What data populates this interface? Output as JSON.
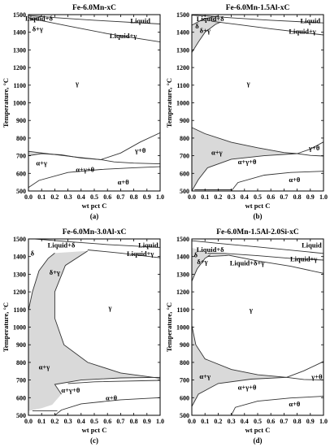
{
  "chart_data": [
    {
      "type": "line",
      "panel_label": "(a)",
      "title": "Fe-6.0Mn-xC",
      "xlabel": "wt pct C",
      "ylabel": "Temperature, °C",
      "xlim": [
        0,
        1.0
      ],
      "ylim": [
        500,
        1500
      ],
      "xticks": [
        "0.0",
        "0.1",
        "0.2",
        "0.3",
        "0.4",
        "0.5",
        "0.6",
        "0.7",
        "0.8",
        "0.9",
        "1.0"
      ],
      "yticks": [
        "500",
        "600",
        "700",
        "800",
        "900",
        "1000",
        "1100",
        "1200",
        "1300",
        "1400",
        "1500"
      ],
      "phase_regions": [
        {
          "label": "Liquid+δ",
          "x": 0.08,
          "y": 1480
        },
        {
          "label": "δ+γ",
          "x": 0.07,
          "y": 1420
        },
        {
          "label": "Liquid",
          "x": 0.85,
          "y": 1465
        },
        {
          "label": "Liquid+γ",
          "x": 0.72,
          "y": 1380
        },
        {
          "label": "γ",
          "x": 0.37,
          "y": 1110
        },
        {
          "label": "γ+θ",
          "x": 0.85,
          "y": 730
        },
        {
          "label": "α+γ",
          "x": 0.1,
          "y": 660
        },
        {
          "label": "α+γ+θ",
          "x": 0.43,
          "y": 623
        },
        {
          "label": "α+θ",
          "x": 0.72,
          "y": 550
        }
      ],
      "boundaries": [
        {
          "name": "liquidus",
          "points": [
            [
              0,
              1495
            ],
            [
              0.05,
              1492
            ],
            [
              0.2,
              1483
            ],
            [
              0.5,
              1468
            ],
            [
              1.0,
              1447
            ]
          ]
        },
        {
          "name": "gamma-liquid+gamma",
          "points": [
            [
              0.02,
              1478
            ],
            [
              0.3,
              1436
            ],
            [
              0.6,
              1392
            ],
            [
              1.0,
              1345
            ]
          ]
        },
        {
          "name": "delta-loop",
          "points": [
            [
              0,
              1490
            ],
            [
              0.01,
              1478
            ],
            [
              0.03,
              1470
            ],
            [
              0.07,
              1482
            ],
            [
              0.1,
              1492
            ]
          ]
        },
        {
          "name": "A3",
          "points": [
            [
              0,
              725
            ],
            [
              0.15,
              711
            ],
            [
              0.35,
              693
            ],
            [
              0.55,
              678
            ]
          ]
        },
        {
          "name": "acm",
          "points": [
            [
              0.55,
              678
            ],
            [
              0.7,
              715
            ],
            [
              0.85,
              778
            ],
            [
              1.0,
              830
            ]
          ]
        },
        {
          "name": "A1-upper",
          "points": [
            [
              0,
              700
            ],
            [
              0.1,
              712
            ],
            [
              0.25,
              705
            ],
            [
              0.4,
              687
            ],
            [
              0.55,
              678
            ]
          ]
        },
        {
          "name": "A1-lower",
          "points": [
            [
              0.55,
              678
            ],
            [
              0.65,
              665
            ],
            [
              0.8,
              658
            ],
            [
              1.0,
              654
            ]
          ]
        },
        {
          "name": "alpha-solvus",
          "points": [
            [
              0,
              520
            ],
            [
              0.08,
              560
            ],
            [
              0.3,
              605
            ],
            [
              0.55,
              622
            ],
            [
              0.8,
              632
            ],
            [
              1.0,
              638
            ]
          ]
        }
      ]
    },
    {
      "type": "line",
      "panel_label": "(b)",
      "title": "Fe-6.0Mn-1.5Al-xC",
      "xlabel": "wt pct C",
      "ylabel": "Temperature, °C",
      "xlim": [
        0,
        1.0
      ],
      "ylim": [
        500,
        1500
      ],
      "xticks": [
        "0.0",
        "0.1",
        "0.2",
        "0.3",
        "0.4",
        "0.5",
        "0.6",
        "0.7",
        "0.8",
        "0.9",
        "1.0"
      ],
      "yticks": [
        "500",
        "600",
        "700",
        "800",
        "900",
        "1000",
        "1100",
        "1200",
        "1300",
        "1400",
        "1500"
      ],
      "phase_regions": [
        {
          "label": "Liquid+δ",
          "x": 0.14,
          "y": 1476
        },
        {
          "label": "Liquid",
          "x": 0.9,
          "y": 1466
        },
        {
          "label": "δ",
          "x": 0.04,
          "y": 1435
        },
        {
          "label": "δ+γ",
          "x": 0.1,
          "y": 1410
        },
        {
          "label": "Liquid+γ",
          "x": 0.84,
          "y": 1405
        },
        {
          "label": "γ",
          "x": 0.43,
          "y": 1110
        },
        {
          "label": "α+γ",
          "x": 0.19,
          "y": 720
        },
        {
          "label": "γ+θ",
          "x": 0.93,
          "y": 745
        },
        {
          "label": "α+γ+θ",
          "x": 0.42,
          "y": 665
        },
        {
          "label": "α+θ",
          "x": 0.78,
          "y": 565
        }
      ],
      "boundaries": [
        {
          "name": "liquidus",
          "points": [
            [
              0,
              1497
            ],
            [
              0.1,
              1493
            ],
            [
              0.3,
              1482
            ],
            [
              0.6,
              1468
            ],
            [
              1.0,
              1453
            ]
          ]
        },
        {
          "name": "gamma-liquid+gamma",
          "points": [
            [
              0.15,
              1462
            ],
            [
              0.35,
              1444
            ],
            [
              0.6,
              1420
            ],
            [
              1.0,
              1385
            ]
          ]
        },
        {
          "name": "delta-boundary",
          "points": [
            [
              0,
              1285
            ],
            [
              0.05,
              1345
            ],
            [
              0.1,
              1400
            ],
            [
              0.18,
              1445
            ],
            [
              0.22,
              1458
            ]
          ]
        },
        {
          "name": "delta-inner",
          "points": [
            [
              0,
              1440
            ],
            [
              0.05,
              1460
            ],
            [
              0.1,
              1478
            ],
            [
              0.2,
              1492
            ]
          ]
        },
        {
          "name": "A3",
          "points": [
            [
              0,
              860
            ],
            [
              0.1,
              825
            ],
            [
              0.3,
              776
            ],
            [
              0.5,
              745
            ],
            [
              0.7,
              718
            ],
            [
              0.8,
              712
            ]
          ]
        },
        {
          "name": "acm",
          "points": [
            [
              0.8,
              712
            ],
            [
              0.9,
              738
            ],
            [
              1.0,
              778
            ]
          ]
        },
        {
          "name": "A1-upper",
          "points": [
            [
              0,
              500
            ],
            [
              0.05,
              565
            ],
            [
              0.12,
              632
            ],
            [
              0.3,
              680
            ],
            [
              0.55,
              700
            ],
            [
              0.8,
              712
            ]
          ]
        },
        {
          "name": "A1-lower",
          "points": [
            [
              0.8,
              712
            ],
            [
              0.9,
              702
            ],
            [
              1.0,
              698
            ]
          ]
        },
        {
          "name": "alpha-solvus",
          "points": [
            [
              0.3,
              500
            ],
            [
              0.35,
              548
            ],
            [
              0.55,
              590
            ],
            [
              0.75,
              605
            ],
            [
              1.0,
              612
            ]
          ]
        },
        {
          "name": "bottom-line",
          "points": [
            [
              0.02,
              507
            ],
            [
              0.3,
              507
            ]
          ]
        }
      ]
    },
    {
      "type": "line",
      "panel_label": "(c)",
      "title": "Fe-6.0Mn-3.0Al-xC",
      "xlabel": "wt pct C",
      "ylabel": "Temperature, °C",
      "xlim": [
        0,
        1.0
      ],
      "ylim": [
        500,
        1500
      ],
      "xticks": [
        "0.0",
        "0.1",
        "0.2",
        "0.3",
        "0.4",
        "0.5",
        "0.6",
        "0.7",
        "0.8",
        "0.9",
        "1.0"
      ],
      "yticks": [
        "500",
        "600",
        "700",
        "800",
        "900",
        "1000",
        "1100",
        "1200",
        "1300",
        "1400",
        "1500"
      ],
      "phase_regions": [
        {
          "label": "Liquid+δ",
          "x": 0.25,
          "y": 1466
        },
        {
          "label": "Liquid",
          "x": 0.91,
          "y": 1466
        },
        {
          "label": "δ",
          "x": 0.03,
          "y": 1420
        },
        {
          "label": "Liquid+γ",
          "x": 0.85,
          "y": 1416
        },
        {
          "label": "δ+γ",
          "x": 0.2,
          "y": 1310
        },
        {
          "label": "γ",
          "x": 0.62,
          "y": 1110
        },
        {
          "label": "α+γ",
          "x": 0.12,
          "y": 775
        },
        {
          "label": "α+γ+θ",
          "x": 0.32,
          "y": 642
        },
        {
          "label": "α+θ",
          "x": 0.63,
          "y": 600
        }
      ],
      "boundaries": [
        {
          "name": "liquidus",
          "points": [
            [
              0.05,
              1500
            ],
            [
              0.3,
              1485
            ],
            [
              0.6,
              1468
            ],
            [
              1.0,
              1452
            ]
          ]
        },
        {
          "name": "gamma-liquid+gamma",
          "points": [
            [
              0.45,
              1438
            ],
            [
              0.7,
              1420
            ],
            [
              1.0,
              1393
            ]
          ]
        },
        {
          "name": "delta-boundary",
          "points": [
            [
              0,
              1095
            ],
            [
              0.03,
              1200
            ],
            [
              0.08,
              1320
            ],
            [
              0.15,
              1390
            ],
            [
              0.2,
              1420
            ]
          ]
        },
        {
          "name": "delta+gamma-inner",
          "points": [
            [
              0.45,
              1432
            ],
            [
              0.28,
              1350
            ],
            [
              0.2,
              1200
            ],
            [
              0.2,
              1050
            ],
            [
              0.27,
              900
            ],
            [
              0.45,
              800
            ],
            [
              0.7,
              740
            ],
            [
              1.0,
              710
            ]
          ]
        },
        {
          "name": "alpha+gamma-lower",
          "points": [
            [
              0.25,
              620
            ],
            [
              0.2,
              675
            ],
            [
              0.4,
              700
            ],
            [
              0.7,
              712
            ],
            [
              1.0,
              715
            ]
          ]
        },
        {
          "name": "A1",
          "points": [
            [
              0.3,
              680
            ],
            [
              0.5,
              690
            ],
            [
              1.0,
              698
            ]
          ]
        },
        {
          "name": "alpha-solvus",
          "points": [
            [
              0.2,
              500
            ],
            [
              0.25,
              530
            ],
            [
              0.4,
              565
            ],
            [
              0.7,
              588
            ],
            [
              1.0,
              600
            ]
          ]
        },
        {
          "name": "bottom-line",
          "points": [
            [
              0.03,
              525
            ],
            [
              0.22,
              525
            ]
          ]
        }
      ]
    },
    {
      "type": "line",
      "panel_label": "(d)",
      "title": "Fe-6.0Mn-1.5Al-2.0Si-xC",
      "xlabel": "wt pct C",
      "ylabel": "Temperature, °C",
      "xlim": [
        0,
        1.0
      ],
      "ylim": [
        500,
        1500
      ],
      "xticks": [
        "0.0",
        "0.1",
        "0.2",
        "0.3",
        "0.4",
        "0.5",
        "0.6",
        "0.7",
        "0.8",
        "0.9",
        "1.0"
      ],
      "yticks": [
        "500",
        "600",
        "700",
        "800",
        "900",
        "1000",
        "1100",
        "1200",
        "1300",
        "1400",
        "1500"
      ],
      "phase_regions": [
        {
          "label": "Liquid",
          "x": 0.91,
          "y": 1466
        },
        {
          "label": "Liquid+δ",
          "x": 0.14,
          "y": 1439
        },
        {
          "label": "δ",
          "x": 0.03,
          "y": 1410
        },
        {
          "label": "δ+γ",
          "x": 0.08,
          "y": 1370
        },
        {
          "label": "Liquid+δ+γ",
          "x": 0.42,
          "y": 1365
        },
        {
          "label": "Liquid+γ",
          "x": 0.85,
          "y": 1386
        },
        {
          "label": "γ",
          "x": 0.45,
          "y": 1100
        },
        {
          "label": "α+γ",
          "x": 0.1,
          "y": 722
        },
        {
          "label": "γ+θ",
          "x": 0.95,
          "y": 718
        },
        {
          "label": "α+γ+θ",
          "x": 0.42,
          "y": 660
        },
        {
          "label": "α+θ",
          "x": 0.78,
          "y": 565
        }
      ],
      "boundaries": [
        {
          "name": "liquidus",
          "points": [
            [
              0,
              1490
            ],
            [
              0.2,
              1475
            ],
            [
              0.5,
              1455
            ],
            [
              1.0,
              1418
            ]
          ]
        },
        {
          "name": "three-phase-upper",
          "points": [
            [
              0.12,
              1420
            ],
            [
              0.25,
              1418
            ],
            [
              0.5,
              1405
            ],
            [
              0.75,
              1390
            ],
            [
              1.0,
              1380
            ]
          ]
        },
        {
          "name": "three-phase-lower",
          "points": [
            [
              0.12,
              1400
            ],
            [
              0.25,
              1405
            ],
            [
              0.28,
              1408
            ]
          ]
        },
        {
          "name": "gamma-liquid+gamma",
          "points": [
            [
              0.28,
              1408
            ],
            [
              0.5,
              1375
            ],
            [
              0.75,
              1345
            ],
            [
              1.0,
              1305
            ]
          ]
        },
        {
          "name": "delta-boundary",
          "points": [
            [
              0,
              1260
            ],
            [
              0.04,
              1330
            ],
            [
              0.1,
              1390
            ],
            [
              0.14,
              1410
            ]
          ]
        },
        {
          "name": "alpha+gamma-upper",
          "points": [
            [
              0,
              1010
            ],
            [
              0.03,
              900
            ],
            [
              0.1,
              820
            ],
            [
              0.3,
              760
            ],
            [
              0.5,
              730
            ],
            [
              0.72,
              715
            ]
          ]
        },
        {
          "name": "acm",
          "points": [
            [
              0.72,
              715
            ],
            [
              0.85,
              752
            ],
            [
              1.0,
              805
            ]
          ]
        },
        {
          "name": "A1-upper",
          "points": [
            [
              0,
              550
            ],
            [
              0.05,
              620
            ],
            [
              0.2,
              680
            ],
            [
              0.45,
              705
            ],
            [
              0.72,
              715
            ]
          ]
        },
        {
          "name": "A1-lower",
          "points": [
            [
              0.72,
              715
            ],
            [
              0.85,
              703
            ],
            [
              1.0,
              700
            ]
          ]
        },
        {
          "name": "alpha-solvus",
          "points": [
            [
              0.3,
              500
            ],
            [
              0.33,
              545
            ],
            [
              0.5,
              580
            ],
            [
              0.75,
              598
            ],
            [
              1.0,
              608
            ]
          ]
        }
      ]
    }
  ]
}
